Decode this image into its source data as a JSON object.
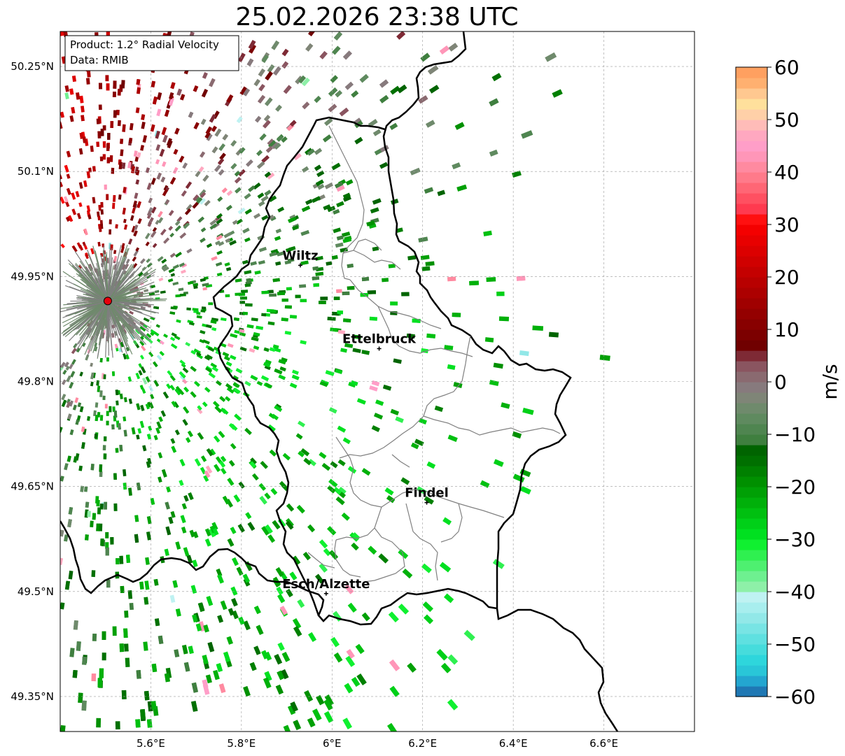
{
  "title": "25.02.2026 23:38 UTC",
  "info_box": {
    "product": "Product: 1.2° Radial Velocity",
    "data_source": "Data: RMIB"
  },
  "map": {
    "lon_range": [
      5.4,
      6.8
    ],
    "lat_range": [
      49.3,
      50.3
    ],
    "x_ticks": [
      {
        "value": 5.6,
        "label": "5.6°E"
      },
      {
        "value": 5.8,
        "label": "5.8°E"
      },
      {
        "value": 6.0,
        "label": "6°E"
      },
      {
        "value": 6.2,
        "label": "6.2°E"
      },
      {
        "value": 6.4,
        "label": "6.4°E"
      },
      {
        "value": 6.6,
        "label": "6.6°E"
      }
    ],
    "y_ticks": [
      {
        "value": 50.25,
        "label": "50.25°N"
      },
      {
        "value": 50.1,
        "label": "50.1°N"
      },
      {
        "value": 49.95,
        "label": "49.95°N"
      },
      {
        "value": 49.8,
        "label": "49.8°N"
      },
      {
        "value": 49.65,
        "label": "49.65°N"
      },
      {
        "value": 49.5,
        "label": "49.5°N"
      },
      {
        "value": 49.35,
        "label": "49.35°N"
      }
    ],
    "radar_site": {
      "lon": 5.505,
      "lat": 49.915,
      "color": "#e8000b"
    },
    "cities": [
      {
        "name": "Wiltz",
        "lon": 5.93,
        "lat": 49.966
      },
      {
        "name": "Ettelbruck",
        "lon": 6.104,
        "lat": 49.847
      },
      {
        "name": "Findel",
        "lon": 6.209,
        "lat": 49.627
      },
      {
        "name": "Esch/Alzette",
        "lon": 5.987,
        "lat": 49.497
      }
    ]
  },
  "colorbar": {
    "label": "m/s",
    "min": -60,
    "max": 60,
    "ticks": [
      {
        "value": 60,
        "label": "60"
      },
      {
        "value": 50,
        "label": "50"
      },
      {
        "value": 40,
        "label": "40"
      },
      {
        "value": 30,
        "label": "30"
      },
      {
        "value": 20,
        "label": "20"
      },
      {
        "value": 10,
        "label": "10"
      },
      {
        "value": 0,
        "label": "0"
      },
      {
        "value": -10,
        "label": "−10"
      },
      {
        "value": -20,
        "label": "−20"
      },
      {
        "value": -30,
        "label": "−30"
      },
      {
        "value": -40,
        "label": "−40"
      },
      {
        "value": -50,
        "label": "−50"
      },
      {
        "value": -60,
        "label": "−60"
      }
    ],
    "colors": [
      "#1f78b4",
      "#23a6d0",
      "#29c6d8",
      "#2ed6dc",
      "#46dcdc",
      "#5fe0e0",
      "#78e4e4",
      "#92e8e8",
      "#a8eeee",
      "#bff2f2",
      "#8ef0a8",
      "#6ef090",
      "#4ef070",
      "#2ff050",
      "#10f030",
      "#00e020",
      "#00d018",
      "#00c010",
      "#00b00a",
      "#00a005",
      "#009000",
      "#008000",
      "#007000",
      "#006400",
      "#3f7f3f",
      "#4f8550",
      "#5f8a5f",
      "#6f8a6c",
      "#7f8577",
      "#877a7d",
      "#8a6a70",
      "#8a5560",
      "#7e2a35",
      "#700000",
      "#7c0000",
      "#880000",
      "#940000",
      "#a00000",
      "#ac0000",
      "#b80000",
      "#c40000",
      "#d00000",
      "#dc0000",
      "#e80000",
      "#f40000",
      "#ff1010",
      "#ff3a4f",
      "#ff5061",
      "#ff6675",
      "#ff7a8a",
      "#ff8aa0",
      "#ff96b8",
      "#ff9ec8",
      "#ffa8c0",
      "#ffbcb8",
      "#ffd0a8",
      "#ffe09c",
      "#ffc890",
      "#ffb070",
      "#ffa060"
    ]
  }
}
